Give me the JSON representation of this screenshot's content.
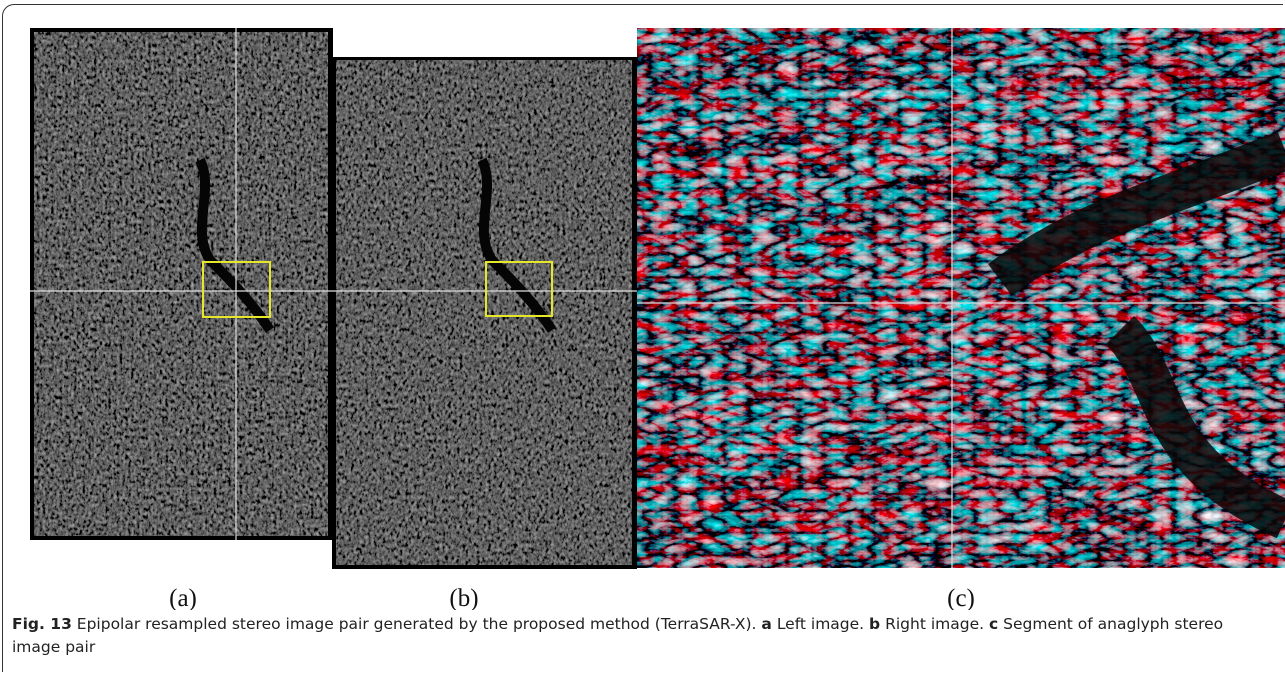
{
  "panels": [
    {
      "label": "(a)"
    },
    {
      "label": "(b)"
    },
    {
      "label": "(c)"
    }
  ],
  "caption": {
    "label": "Fig. 13",
    "text": "Epipolar resampled stereo image pair generated by the proposed method (TerraSAR-X).",
    "parts": [
      {
        "label": "a",
        "text": "Left image."
      },
      {
        "label": "b",
        "text": "Right image."
      },
      {
        "label": "c",
        "text": "Segment of anaglyph stereo image pair"
      }
    ]
  }
}
